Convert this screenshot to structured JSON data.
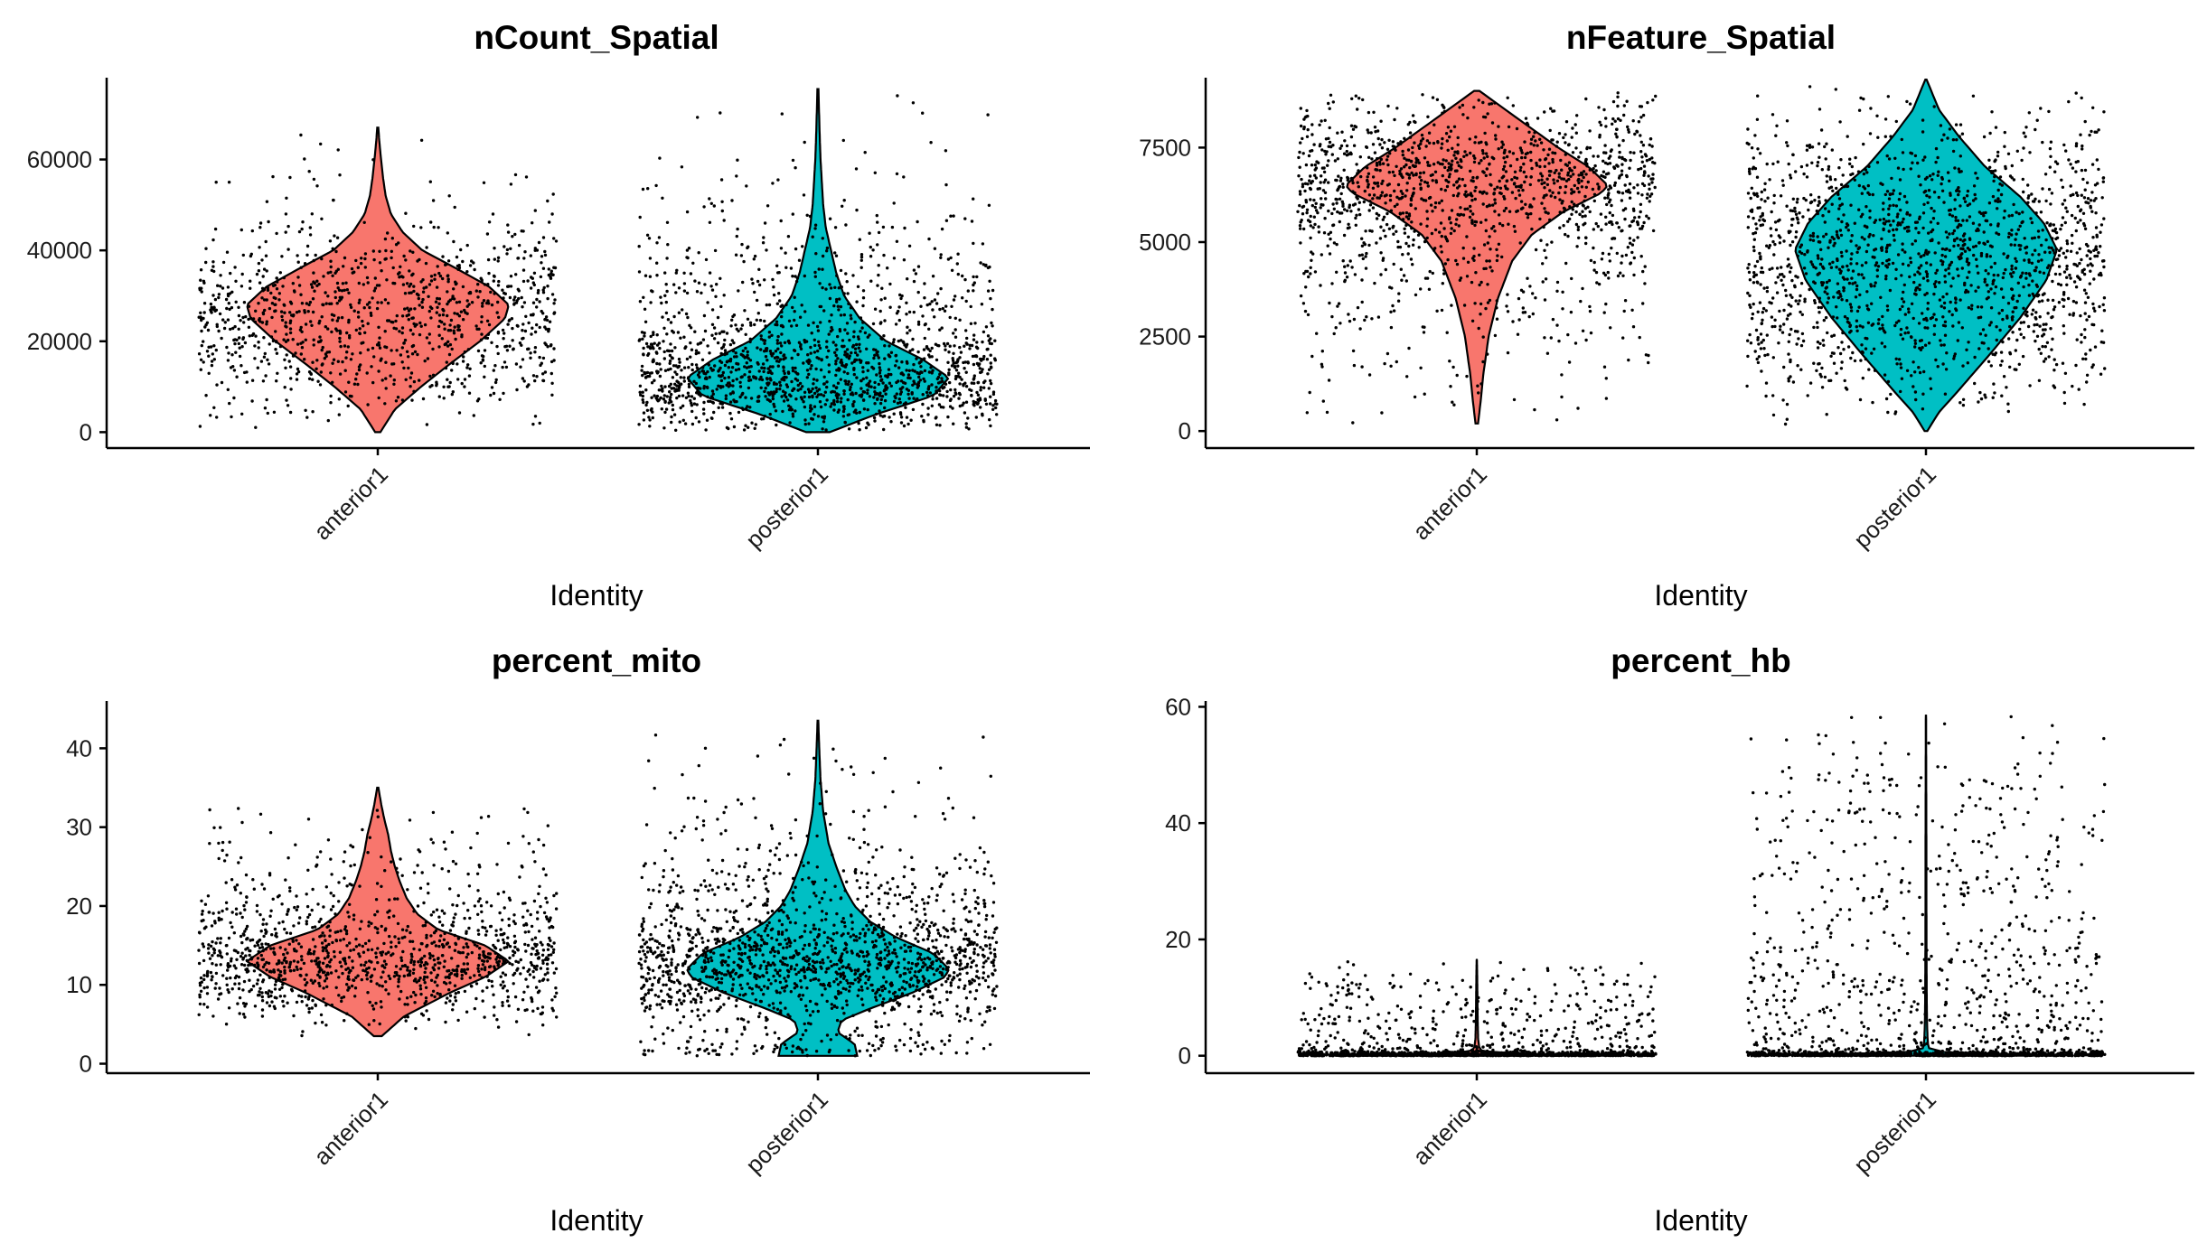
{
  "chart_data": [
    {
      "type": "violin",
      "title": "nCount_Spatial",
      "xlabel": "Identity",
      "categories": [
        "anterior1",
        "posterior1"
      ],
      "ylim": [
        -3500,
        78000
      ],
      "yticks": [
        0,
        20000,
        40000,
        60000
      ],
      "ytick_labels": [
        "0",
        "20000",
        "40000",
        "60000"
      ],
      "series": [
        {
          "name": "anterior1",
          "color": "#F8766D",
          "min": 0,
          "max": 67000,
          "n_points": 1100,
          "density": [
            [
              0,
              0.02
            ],
            [
              5000,
              0.13
            ],
            [
              10000,
              0.33
            ],
            [
              15000,
              0.55
            ],
            [
              20000,
              0.78
            ],
            [
              25000,
              0.97
            ],
            [
              28000,
              1.0
            ],
            [
              32000,
              0.85
            ],
            [
              36000,
              0.6
            ],
            [
              40000,
              0.34
            ],
            [
              44000,
              0.19
            ],
            [
              48000,
              0.1
            ],
            [
              52000,
              0.06
            ],
            [
              56000,
              0.04
            ],
            [
              60000,
              0.025
            ],
            [
              64000,
              0.012
            ],
            [
              67000,
              0.004
            ]
          ]
        },
        {
          "name": "posterior1",
          "color": "#00BFC4",
          "min": 0,
          "max": 75500,
          "n_points": 1650,
          "density": [
            [
              0,
              0.09
            ],
            [
              4000,
              0.45
            ],
            [
              8000,
              0.88
            ],
            [
              12000,
              1.0
            ],
            [
              16000,
              0.8
            ],
            [
              20000,
              0.52
            ],
            [
              25000,
              0.32
            ],
            [
              30000,
              0.2
            ],
            [
              35000,
              0.14
            ],
            [
              40000,
              0.1
            ],
            [
              45000,
              0.06
            ],
            [
              50000,
              0.04
            ],
            [
              55000,
              0.03
            ],
            [
              60000,
              0.02
            ],
            [
              65000,
              0.014
            ],
            [
              70000,
              0.009
            ],
            [
              75500,
              0.004
            ]
          ]
        }
      ]
    },
    {
      "type": "violin",
      "title": "nFeature_Spatial",
      "xlabel": "Identity",
      "categories": [
        "anterior1",
        "posterior1"
      ],
      "ylim": [
        -450,
        9350
      ],
      "yticks": [
        0,
        2500,
        5000,
        7500
      ],
      "ytick_labels": [
        "0",
        "2500",
        "5000",
        "7500"
      ],
      "series": [
        {
          "name": "anterior1",
          "color": "#F8766D",
          "min": 200,
          "max": 9000,
          "n_points": 1450,
          "density": [
            [
              200,
              0.01
            ],
            [
              800,
              0.03
            ],
            [
              1500,
              0.05
            ],
            [
              2500,
              0.09
            ],
            [
              3500,
              0.16
            ],
            [
              4500,
              0.27
            ],
            [
              5200,
              0.42
            ],
            [
              5800,
              0.66
            ],
            [
              6300,
              0.95
            ],
            [
              6500,
              1.0
            ],
            [
              7000,
              0.85
            ],
            [
              7500,
              0.62
            ],
            [
              8000,
              0.42
            ],
            [
              8500,
              0.22
            ],
            [
              9000,
              0.02
            ]
          ]
        },
        {
          "name": "posterior1",
          "color": "#00BFC4",
          "min": 0,
          "max": 9300,
          "n_points": 1650,
          "density": [
            [
              0,
              0.01
            ],
            [
              500,
              0.1
            ],
            [
              1000,
              0.23
            ],
            [
              2000,
              0.48
            ],
            [
              3000,
              0.72
            ],
            [
              4000,
              0.92
            ],
            [
              4800,
              1.0
            ],
            [
              5500,
              0.9
            ],
            [
              6200,
              0.72
            ],
            [
              7000,
              0.45
            ],
            [
              7800,
              0.25
            ],
            [
              8500,
              0.1
            ],
            [
              9300,
              0.005
            ]
          ]
        }
      ]
    },
    {
      "type": "violin",
      "title": "percent_mito",
      "xlabel": "Identity",
      "categories": [
        "anterior1",
        "posterior1"
      ],
      "ylim": [
        -1.2,
        46
      ],
      "yticks": [
        0,
        10,
        20,
        30,
        40
      ],
      "ytick_labels": [
        "0",
        "10",
        "20",
        "30",
        "40"
      ],
      "series": [
        {
          "name": "anterior1",
          "color": "#F8766D",
          "min": 3.5,
          "max": 35,
          "n_points": 1250,
          "density": [
            [
              3.5,
              0.03
            ],
            [
              6,
              0.2
            ],
            [
              9,
              0.55
            ],
            [
              11,
              0.82
            ],
            [
              13,
              1.0
            ],
            [
              15,
              0.82
            ],
            [
              17,
              0.46
            ],
            [
              19,
              0.3
            ],
            [
              21,
              0.22
            ],
            [
              23,
              0.17
            ],
            [
              25,
              0.13
            ],
            [
              27,
              0.1
            ],
            [
              29,
              0.08
            ],
            [
              31,
              0.05
            ],
            [
              33,
              0.025
            ],
            [
              35,
              0.005
            ]
          ]
        },
        {
          "name": "posterior1",
          "color": "#00BFC4",
          "min": 1,
          "max": 43.5,
          "n_points": 1700,
          "density": [
            [
              1,
              0.3
            ],
            [
              2.5,
              0.28
            ],
            [
              4,
              0.15
            ],
            [
              5.5,
              0.18
            ],
            [
              7,
              0.4
            ],
            [
              9,
              0.72
            ],
            [
              11,
              0.97
            ],
            [
              12,
              1.0
            ],
            [
              14,
              0.88
            ],
            [
              16,
              0.6
            ],
            [
              18,
              0.4
            ],
            [
              20,
              0.28
            ],
            [
              22,
              0.21
            ],
            [
              25,
              0.14
            ],
            [
              28,
              0.08
            ],
            [
              32,
              0.04
            ],
            [
              36,
              0.02
            ],
            [
              40,
              0.01
            ],
            [
              43.5,
              0.003
            ]
          ]
        }
      ]
    },
    {
      "type": "violin",
      "title": "percent_hb",
      "xlabel": "Identity",
      "categories": [
        "anterior1",
        "posterior1"
      ],
      "ylim": [
        -3,
        61
      ],
      "yticks": [
        0,
        20,
        40,
        60
      ],
      "ytick_labels": [
        "0",
        "20",
        "40",
        "60"
      ],
      "series": [
        {
          "name": "anterior1",
          "color": "#F8766D",
          "min": 0,
          "max": 16.5,
          "n_points": 1450,
          "density": [
            [
              0,
              1.0
            ],
            [
              0.3,
              0.35
            ],
            [
              0.8,
              0.04
            ],
            [
              1.5,
              0.018
            ],
            [
              3,
              0.01
            ],
            [
              6,
              0.007
            ],
            [
              10,
              0.005
            ],
            [
              14,
              0.003
            ],
            [
              16.5,
              0.001
            ]
          ]
        },
        {
          "name": "posterior1",
          "color": "#00BFC4",
          "min": 0,
          "max": 58.5,
          "n_points": 1700,
          "density": [
            [
              0,
              1.0
            ],
            [
              0.3,
              0.35
            ],
            [
              0.8,
              0.04
            ],
            [
              1.5,
              0.018
            ],
            [
              3,
              0.012
            ],
            [
              6,
              0.008
            ],
            [
              10,
              0.006
            ],
            [
              20,
              0.004
            ],
            [
              40,
              0.003
            ],
            [
              58.5,
              0.001
            ]
          ]
        }
      ]
    }
  ]
}
